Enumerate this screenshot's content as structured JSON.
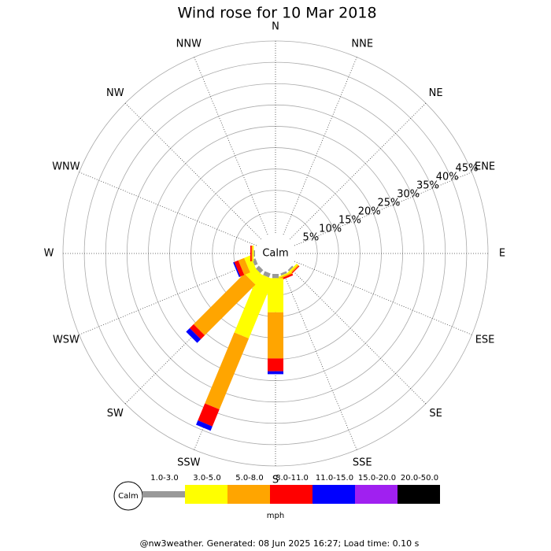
{
  "chart_data": {
    "type": "windrose",
    "title": "Wind rose for 10 Mar 2018",
    "categories": [
      "N",
      "NNE",
      "NE",
      "ENE",
      "E",
      "ESE",
      "SE",
      "SSE",
      "S",
      "SSW",
      "SW",
      "WSW",
      "W",
      "WNW",
      "NW",
      "NNW"
    ],
    "calm_label": "Calm",
    "rlim": [
      0,
      45
    ],
    "rticks": [
      {
        "value": 5,
        "label": "5%"
      },
      {
        "value": 10,
        "label": "10%"
      },
      {
        "value": 15,
        "label": "15%"
      },
      {
        "value": 20,
        "label": "20%"
      },
      {
        "value": 25,
        "label": "25%"
      },
      {
        "value": 30,
        "label": "30%"
      },
      {
        "value": 35,
        "label": "35%"
      },
      {
        "value": 40,
        "label": "40%"
      },
      {
        "value": 45,
        "label": "45%"
      }
    ],
    "series": [
      {
        "name": "1.0-3.0",
        "color": "#999999",
        "values": [
          0,
          0,
          0,
          0,
          0,
          0,
          0.4,
          0.5,
          1,
          1,
          1,
          0.8,
          0.3,
          0,
          0,
          0
        ]
      },
      {
        "name": "3.0-5.0",
        "color": "#ffff00",
        "values": [
          0,
          0,
          0,
          0,
          0,
          0,
          0.4,
          0.3,
          8,
          15,
          2.7,
          1.6,
          0.3,
          0,
          0,
          0
        ]
      },
      {
        "name": "5.0-8.0",
        "color": "#ffa500",
        "values": [
          0,
          0,
          0,
          0,
          0,
          0,
          0.3,
          0.3,
          10.8,
          18,
          16.8,
          1.5,
          0.2,
          0,
          0,
          0
        ]
      },
      {
        "name": "8.0-11.0",
        "color": "#ff0000",
        "values": [
          0,
          0,
          0,
          0,
          0,
          0,
          0.2,
          0.4,
          3,
          4.3,
          1.3,
          1,
          0.3,
          0,
          0,
          0
        ]
      },
      {
        "name": "11.0-15.0",
        "color": "#0000ff",
        "values": [
          0,
          0,
          0,
          0,
          0,
          0,
          0,
          0,
          0.7,
          1.1,
          1.2,
          0.3,
          0,
          0,
          0,
          0
        ]
      },
      {
        "name": "15.0-20.0",
        "color": "#a020f0",
        "values": [
          0,
          0,
          0,
          0,
          0,
          0,
          0,
          0,
          0,
          0,
          0,
          0,
          0,
          0,
          0,
          0
        ]
      },
      {
        "name": "20.0-50.0",
        "color": "#000000",
        "values": [
          0,
          0,
          0,
          0,
          0,
          0,
          0,
          0,
          0,
          0,
          0,
          0,
          0,
          0,
          0,
          0
        ]
      }
    ],
    "legend_unit": "mph",
    "footer": "@nw3weather. Generated: 08 Jun 2025 16:27; Load time: 0.10 s"
  }
}
